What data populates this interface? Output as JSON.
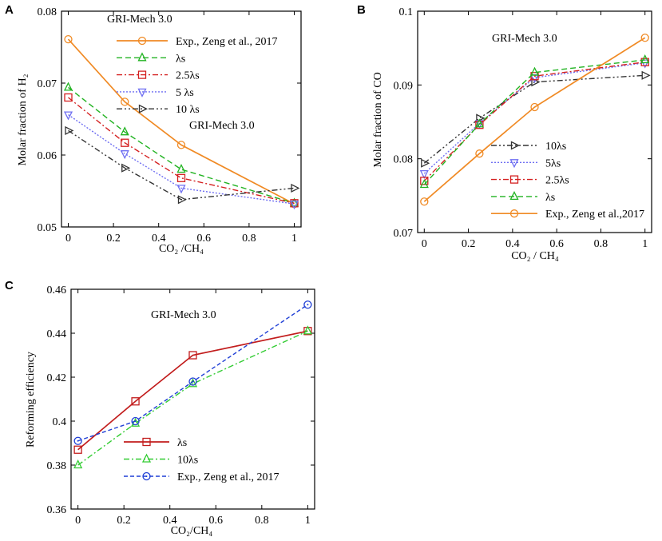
{
  "figure": {
    "colors": {
      "exp": "#f08a24",
      "lambda": "#22b322",
      "l25": "#d42020",
      "l5": "#6f6ff2",
      "l10": "#333333",
      "lambdaC": "#c21d1d",
      "l10C": "#33cc33",
      "expC": "#1f3fd6"
    }
  },
  "chart_data": [
    {
      "panel": "A",
      "type": "line",
      "title": "",
      "xlabel": "CO₂ /CH₄",
      "ylabel": "Molar fraction of H₂",
      "xlim": [
        -0.03,
        1.03
      ],
      "ylim": [
        0.05,
        0.08
      ],
      "xticks": [
        0,
        0.2,
        0.4,
        0.6,
        0.8,
        1
      ],
      "xtick_labels": [
        "0",
        "0.2",
        "0.4",
        "0.6",
        "0.8",
        "1"
      ],
      "yticks": [
        0.05,
        0.06,
        0.07,
        0.08
      ],
      "ytick_labels": [
        "0.05",
        "0.06",
        "0.07",
        "0.08"
      ],
      "x": [
        0,
        0.25,
        0.5,
        1
      ],
      "legend_title": "GRI-Mech 3.0",
      "annotations": [
        "GRI-Mech 3.0"
      ],
      "series": [
        {
          "name": "Exp., Zeng et al., 2017",
          "key": "exp",
          "marker": "circle",
          "dash": "",
          "values": [
            0.0761,
            0.0674,
            0.0614,
            0.0532
          ]
        },
        {
          "name": "λs",
          "key": "lambda",
          "marker": "triangle-up",
          "dash": "7,4",
          "values": [
            0.0694,
            0.0632,
            0.058,
            0.0533
          ]
        },
        {
          "name": "2.5λs",
          "key": "l25",
          "marker": "square",
          "dash": "7,3,2,3",
          "values": [
            0.068,
            0.0617,
            0.0568,
            0.0533
          ]
        },
        {
          "name": "5 λs",
          "key": "l5",
          "marker": "triangle-down",
          "dash": "2,2",
          "values": [
            0.0656,
            0.0602,
            0.0554,
            0.0532
          ]
        },
        {
          "name": "10 λs",
          "key": "l10",
          "marker": "triangle-right",
          "dash": "7,3,2,3,2,3",
          "values": [
            0.0634,
            0.0582,
            0.0538,
            0.0554
          ]
        }
      ]
    },
    {
      "panel": "B",
      "type": "line",
      "title": "",
      "xlabel": "CO₂ / CH₄",
      "ylabel": "Molar fraction of CO",
      "xlim": [
        -0.03,
        1.03
      ],
      "ylim": [
        0.07,
        0.1
      ],
      "xticks": [
        0,
        0.2,
        0.4,
        0.6,
        0.8,
        1
      ],
      "xtick_labels": [
        "0",
        "0.2",
        "0.4",
        "0.6",
        "0.8",
        "1"
      ],
      "yticks": [
        0.07,
        0.08,
        0.09,
        0.1
      ],
      "ytick_labels": [
        "0.07",
        "0.08",
        "0.09",
        "0.1"
      ],
      "x": [
        0,
        0.25,
        0.5,
        1
      ],
      "annotations": [
        "GRI-Mech 3.0"
      ],
      "series": [
        {
          "name": "10λs",
          "key": "l10",
          "marker": "triangle-right",
          "dash": "7,3,2,3,2,3",
          "values": [
            0.0794,
            0.0855,
            0.0904,
            0.0913
          ]
        },
        {
          "name": "5λs",
          "key": "l5",
          "marker": "triangle-down",
          "dash": "2,2",
          "values": [
            0.078,
            0.0848,
            0.091,
            0.093
          ]
        },
        {
          "name": "2.5λs",
          "key": "l25",
          "marker": "square",
          "dash": "7,3,2,3",
          "values": [
            0.077,
            0.0846,
            0.0912,
            0.0931
          ]
        },
        {
          "name": "λs",
          "key": "lambda",
          "marker": "triangle-up",
          "dash": "7,4",
          "values": [
            0.0765,
            0.0847,
            0.0917,
            0.0934
          ]
        },
        {
          "name": "Exp., Zeng et al.,2017",
          "key": "exp",
          "marker": "circle",
          "dash": "",
          "values": [
            0.0742,
            0.0807,
            0.087,
            0.0964
          ]
        }
      ]
    },
    {
      "panel": "C",
      "type": "line",
      "title": "",
      "xlabel": "CO₂/CH₄",
      "ylabel": "Reforming efficiency",
      "xlim": [
        -0.03,
        1.03
      ],
      "ylim": [
        0.36,
        0.46
      ],
      "xticks": [
        0,
        0.2,
        0.4,
        0.6,
        0.8,
        1
      ],
      "xtick_labels": [
        "0",
        "0.2",
        "0.4",
        "0.6",
        "0.8",
        "1"
      ],
      "yticks": [
        0.36,
        0.38,
        0.4,
        0.42,
        0.44,
        0.46
      ],
      "ytick_labels": [
        "0.36",
        "0.38",
        "0.4",
        "0.42",
        "0.44",
        "0.46"
      ],
      "x": [
        0,
        0.25,
        0.5,
        1
      ],
      "annotations": [
        "GRI-Mech 3.0"
      ],
      "series": [
        {
          "name": "λs",
          "key": "lambdaC",
          "marker": "square",
          "dash": "",
          "values": [
            0.387,
            0.409,
            0.43,
            0.441
          ]
        },
        {
          "name": "10λs",
          "key": "l10C",
          "marker": "triangle-up",
          "dash": "7,3,2,3",
          "values": [
            0.38,
            0.399,
            0.417,
            0.441
          ]
        },
        {
          "name": "Exp., Zeng et al., 2017",
          "key": "expC",
          "marker": "circle-dot",
          "dash": "5,3",
          "values": [
            0.391,
            0.4,
            0.418,
            0.453
          ]
        }
      ]
    }
  ]
}
